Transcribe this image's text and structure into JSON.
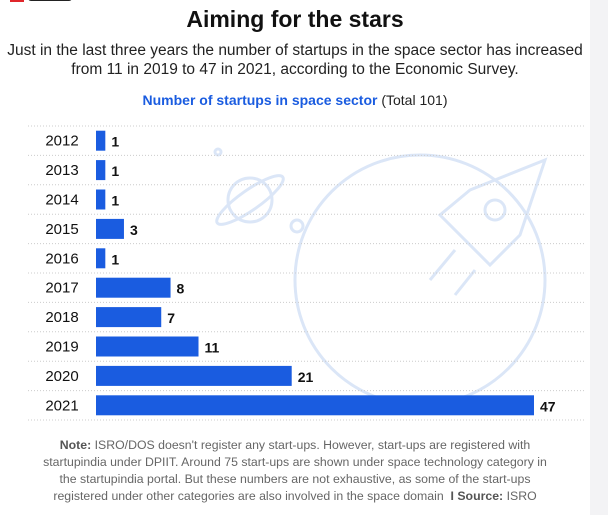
{
  "title": "Aiming for the stars",
  "subtitle": "Just in the last three years the number of startups in the space sector has increased from 11 in 2019 to 47 in 2021, according to the Economic Survey.",
  "note_label": "Note:",
  "note": "ISRO/DOS doesn't register any start-ups. However, start-ups are registered with startupindia under DPIIT. Around 75 start-ups are shown under space technology category in the startupindia portal. But these numbers are not exhaustive, as some of the start-ups registered under other categories are also involved in the space domain",
  "separator": "I",
  "source_label": "Source:",
  "source": "ISRO",
  "colors": {
    "bar": "#1a5ce0",
    "accent": "#1a5ce0",
    "logo": "#e0262b"
  },
  "chart_data": {
    "type": "bar",
    "orientation": "horizontal",
    "title": "Number of startups in space sector",
    "title_suffix": "(Total 101)",
    "categories": [
      "2012",
      "2013",
      "2014",
      "2015",
      "2016",
      "2017",
      "2018",
      "2019",
      "2020",
      "2021"
    ],
    "values": [
      1,
      1,
      1,
      3,
      1,
      8,
      7,
      11,
      21,
      47
    ],
    "xlim": [
      0,
      47
    ],
    "grid": false
  }
}
